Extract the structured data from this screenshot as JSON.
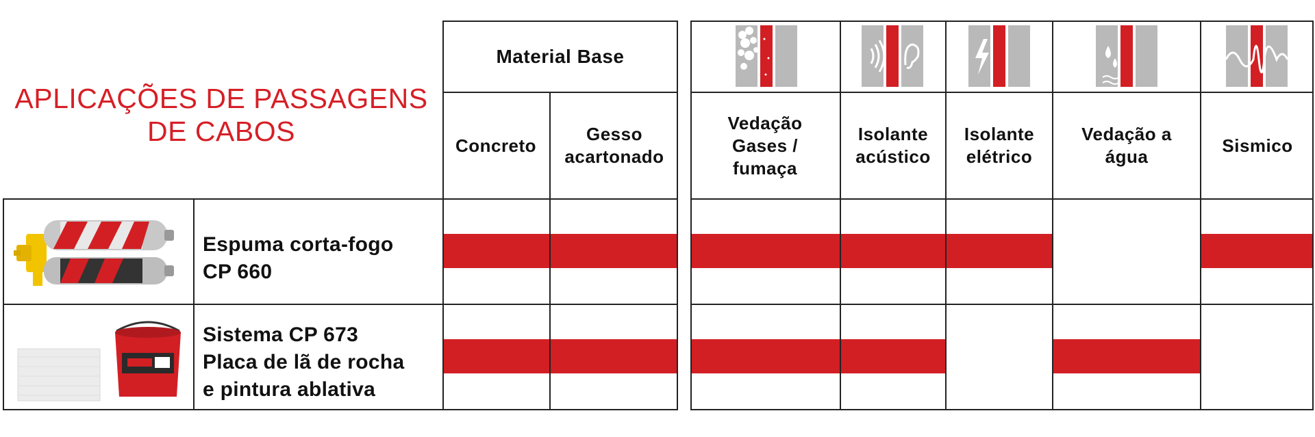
{
  "title": {
    "line1": "APLICAÇÕES DE PASSAGENS",
    "line2": "DE CABOS"
  },
  "material_base": {
    "group_label": "Material Base",
    "columns": [
      "Concreto",
      "Gesso acartonado"
    ]
  },
  "properties": {
    "columns": [
      {
        "lines": [
          "Vedação",
          "Gases /",
          "fumaça"
        ],
        "icon": "smoke-seal-icon"
      },
      {
        "lines": [
          "Isolante",
          "acústico"
        ],
        "icon": "acoustic-insulation-icon"
      },
      {
        "lines": [
          "Isolante",
          "elétrico"
        ],
        "icon": "electrical-insulation-icon"
      },
      {
        "lines": [
          "Vedação a",
          "água"
        ],
        "icon": "water-seal-icon"
      },
      {
        "lines": [
          "Sismico"
        ],
        "icon": "seismic-icon"
      }
    ]
  },
  "rows": [
    {
      "image": "firestop-foam-cartridges",
      "label_lines": [
        "Espuma corta-fogo",
        "CP 660"
      ],
      "base": [
        true,
        true
      ],
      "props": [
        true,
        true,
        true,
        false,
        true
      ]
    },
    {
      "image": "rock-wool-board-and-coating-bucket",
      "label_lines": [
        "Sistema CP 673",
        "Placa de lã de rocha",
        "e pintura ablativa"
      ],
      "base": [
        true,
        true
      ],
      "props": [
        true,
        true,
        false,
        true,
        false
      ]
    }
  ],
  "colors": {
    "brand_red": "#d21f24",
    "grid": "#222222",
    "icon_grey": "#b9b9b9"
  }
}
